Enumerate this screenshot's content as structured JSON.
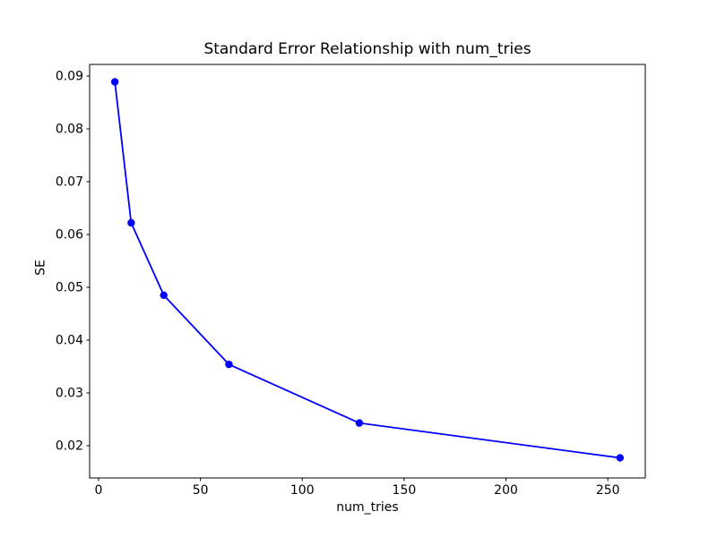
{
  "figure": {
    "title": "Standard Error Relationship with num_tries",
    "xlabel": "num_tries",
    "ylabel": "SE"
  },
  "chart_data": {
    "type": "line",
    "title": "Standard Error Relationship with num_tries",
    "xlabel": "num_tries",
    "ylabel": "SE",
    "x": [
      8,
      16,
      32,
      64,
      128,
      256
    ],
    "y": [
      0.0889,
      0.0622,
      0.0485,
      0.0354,
      0.0243,
      0.0177
    ],
    "xlim": [
      -4.4,
      268.4
    ],
    "ylim": [
      0.0139,
      0.0922
    ],
    "xticks": [
      0,
      50,
      100,
      150,
      200,
      250
    ],
    "xtick_labels": [
      "0",
      "50",
      "100",
      "150",
      "200",
      "250"
    ],
    "yticks": [
      0.02,
      0.03,
      0.04,
      0.05,
      0.06,
      0.07,
      0.08,
      0.09
    ],
    "ytick_labels": [
      "0.02",
      "0.03",
      "0.04",
      "0.05",
      "0.06",
      "0.07",
      "0.08",
      "0.09"
    ],
    "grid": false,
    "legend": null,
    "line_color": "#0000ff",
    "marker": "o",
    "marker_color": "#0000ff",
    "axes_color": "#000000",
    "background_color": "#ffffff"
  }
}
